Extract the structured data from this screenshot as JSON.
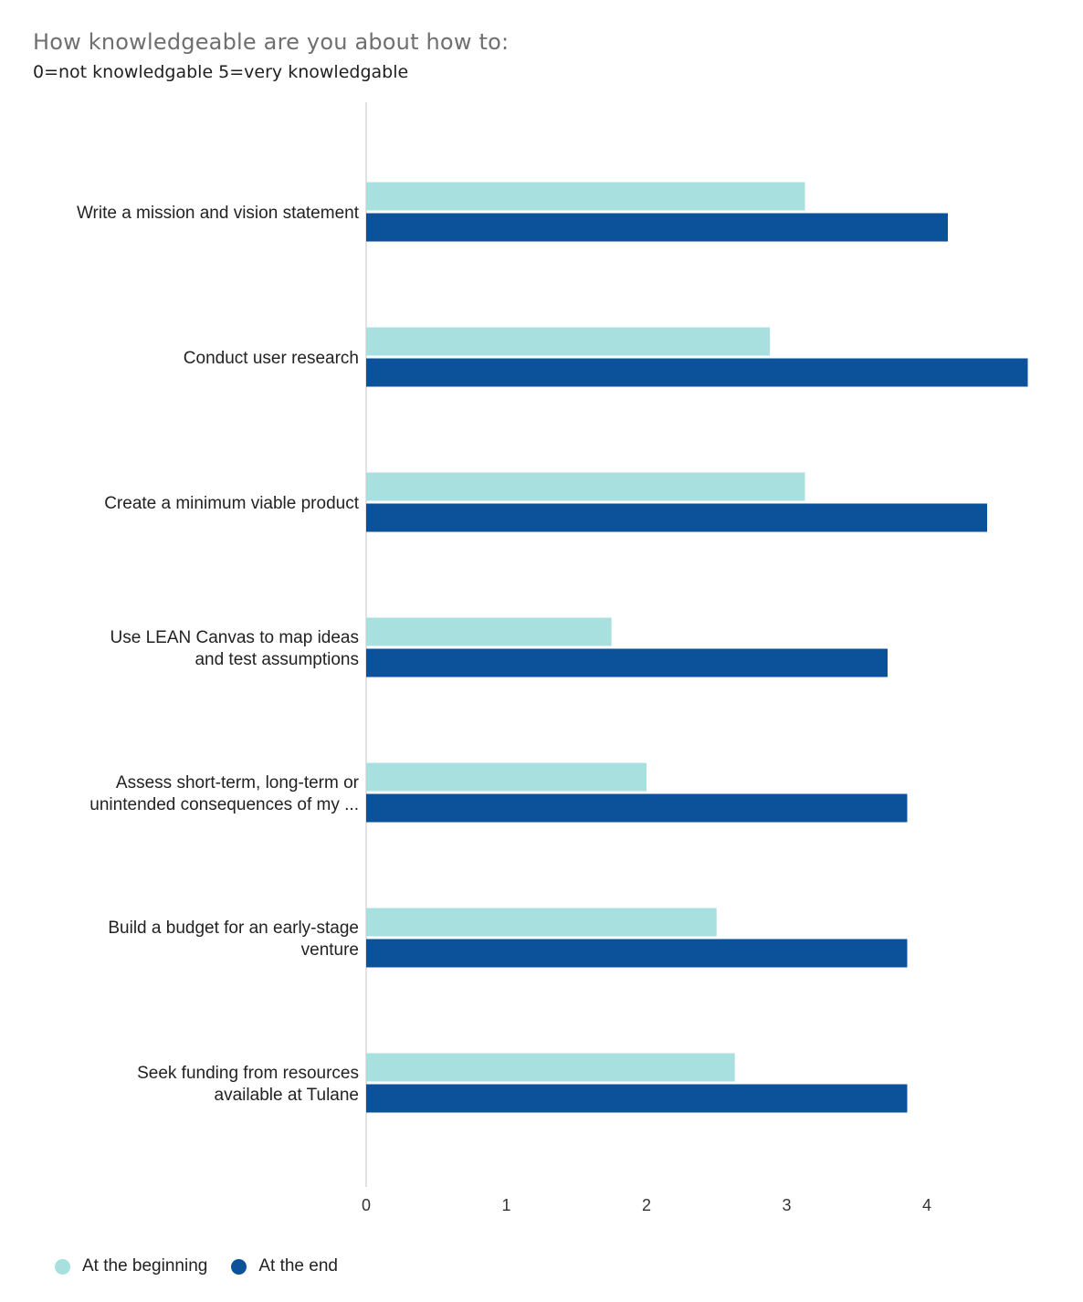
{
  "title": "How knowledgeable are you about how to:",
  "subtitle": "0=not knowledgable 5=very knowledgable",
  "colors": {
    "beginning": "#a8e0e0",
    "end": "#0b529b",
    "axis": "#d9d9d9"
  },
  "chart_data": {
    "type": "bar",
    "orientation": "horizontal",
    "categories": [
      "Write a mission and vision statement",
      "Conduct user research",
      "Create a minimum viable product",
      "Use LEAN Canvas to map ideas and test assumptions",
      "Assess short-term, long-term or unintended consequences of my ...",
      "Build a budget for an early-stage venture",
      "Seek funding from resources available at Tulane"
    ],
    "category_lines": [
      [
        "Write a mission and vision statement"
      ],
      [
        "Conduct user research"
      ],
      [
        "Create a minimum viable product"
      ],
      [
        "Use LEAN Canvas to map ideas",
        "and test assumptions"
      ],
      [
        "Assess short-term, long-term or",
        "unintended consequences of my ..."
      ],
      [
        "Build a budget for an early-stage",
        "venture"
      ],
      [
        "Seek funding from resources",
        "available at Tulane"
      ]
    ],
    "series": [
      {
        "name": "At the beginning",
        "values": [
          3.13,
          2.88,
          3.13,
          1.75,
          2.0,
          2.5,
          2.63
        ]
      },
      {
        "name": "At the end",
        "values": [
          4.15,
          4.72,
          4.43,
          3.72,
          3.86,
          3.86,
          3.86
        ]
      }
    ],
    "xticks": [
      "0",
      "1",
      "2",
      "3",
      "4"
    ],
    "xlim": [
      0,
      4.75
    ],
    "grid": false,
    "legend": "bottom-left"
  }
}
